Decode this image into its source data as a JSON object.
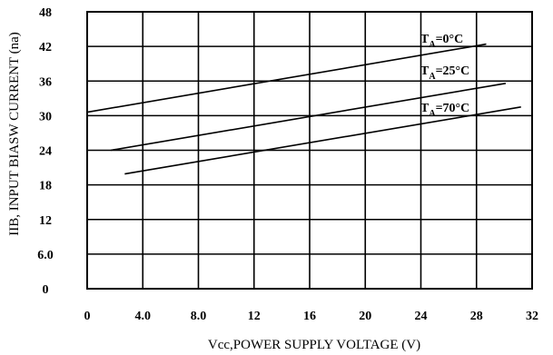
{
  "chart_data": {
    "type": "line",
    "xlabel": "Vcc,POWER SUPPLY VOLTAGE (V)",
    "ylabel": "IIB, INPUT BIASW CURRENT (na)",
    "xlim": [
      0,
      32
    ],
    "ylim": [
      0,
      48
    ],
    "x_ticks": [
      "0",
      "4.0",
      "8.0",
      "12",
      "16",
      "20",
      "24",
      "28",
      "32"
    ],
    "y_ticks": [
      "0",
      "6.0",
      "12",
      "18",
      "24",
      "30",
      "36",
      "42",
      "48"
    ],
    "grid": true,
    "series": [
      {
        "name": "TA=0°C",
        "label_main": "T",
        "label_sub": "A",
        "label_rest": "=0°C",
        "x": [
          0,
          28.7
        ],
        "y": [
          30.6,
          42.4
        ]
      },
      {
        "name": "TA=25°C",
        "label_main": "T",
        "label_sub": "A",
        "label_rest": "=25°C",
        "x": [
          1.7,
          30.1
        ],
        "y": [
          24.0,
          35.6
        ]
      },
      {
        "name": "TA=70°C",
        "label_main": "T",
        "label_sub": "A",
        "label_rest": "=70°C",
        "x": [
          2.7,
          31.2
        ],
        "y": [
          19.9,
          31.5
        ]
      }
    ]
  }
}
